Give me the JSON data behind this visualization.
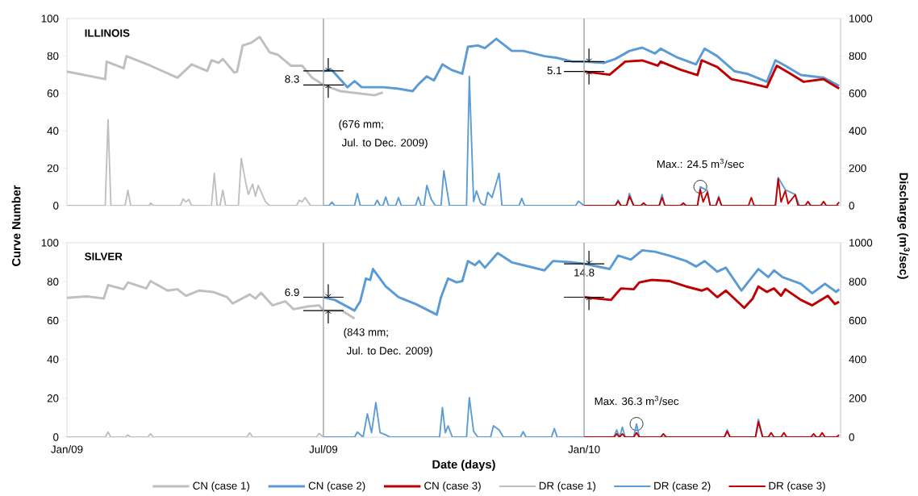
{
  "chart_data": [
    {
      "type": "line",
      "title": "ILLINOIS",
      "xlim": [
        "2009-01-01",
        "2010-07-01"
      ],
      "ylim": [
        0,
        100
      ],
      "yticks": [
        0,
        20,
        40,
        60,
        80,
        100
      ],
      "y2lim": [
        0,
        1000
      ],
      "y2ticks": [
        0,
        200,
        400,
        600,
        800,
        1000
      ],
      "tick_labels": "y",
      "ref_lines": [
        {
          "axis": "x",
          "value": "2009-07-01",
          "color": "#a6a6a6"
        },
        {
          "axis": "x",
          "value": "2010-01-01",
          "color": "#a6a6a6"
        }
      ],
      "annotations": [
        {
          "text": "8.3",
          "x": "2009-07-01",
          "y": 72
        },
        {
          "text": "5.1",
          "x": "2010-01-01",
          "y": 77
        },
        "(676 mm;",
        "Jul. to Dec. 2009)",
        {
          "text": "Max.: 24.5 m$^{3}$/sec",
          "x": "2010-03-24",
          "y": 10.1
        }
      ],
      "series": [
        {
          "color": "#bfbfbf",
          "x": [
            "2009-01-01",
            "2009-01-28",
            "2009-01-29",
            "2009-02-10",
            "2009-02-12",
            "2009-03-01",
            "2009-03-20",
            "2009-03-30",
            "2009-04-10",
            "2009-04-13",
            "2009-04-18",
            "2009-04-21",
            "2009-04-29",
            "2009-05-01",
            "2009-05-05",
            "2009-05-11",
            "2009-05-17",
            "2009-05-24",
            "2009-05-30",
            "2009-06-08",
            "2009-06-16",
            "2009-06-23",
            "2009-07-01",
            "2009-07-13",
            "2009-08-06",
            "2009-08-12"
          ],
          "values": [
            71.7,
            67.6,
            77,
            73.4,
            79.9,
            74.8,
            68.4,
            75.5,
            72,
            77.7,
            76.3,
            78.4,
            71.2,
            71.5,
            85.6,
            87,
            90.2,
            82,
            80.6,
            74.8,
            74.8,
            68.4,
            64.5,
            61.2,
            59,
            60.5
          ]
        },
        {
          "color": "#5b9bd5",
          "x": [
            "2009-07-01",
            "2009-07-07",
            "2009-07-18",
            "2009-07-23",
            "2009-07-28",
            "2009-08-12",
            "2009-08-22",
            "2009-09-02",
            "2009-09-06",
            "2009-09-12",
            "2009-09-17",
            "2009-09-23",
            "2009-09-29",
            "2009-10-07",
            "2009-10-11",
            "2009-10-18",
            "2009-10-23",
            "2009-10-31",
            "2009-11-11",
            "2009-11-19",
            "2009-12-04",
            "2009-12-12",
            "2009-12-24",
            "2010-01-01",
            "2010-01-15",
            "2010-01-23",
            "2010-02-02",
            "2010-02-11",
            "2010-02-20",
            "2010-02-24",
            "2010-03-08",
            "2010-03-21",
            "2010-03-27",
            "2010-04-05",
            "2010-04-17",
            "2010-04-26",
            "2010-05-10",
            "2010-05-16",
            "2010-05-23",
            "2010-06-03",
            "2010-06-19",
            "2010-06-30"
          ],
          "values": [
            72,
            72.4,
            63.3,
            66.6,
            63.3,
            63.3,
            62.6,
            61.2,
            64.8,
            69.1,
            66.9,
            75.5,
            72.7,
            70.5,
            84.9,
            85.6,
            84.2,
            89.2,
            82.7,
            82.7,
            79.9,
            79.1,
            77,
            77,
            76.3,
            78.4,
            82.7,
            84.5,
            81.3,
            83.9,
            79.1,
            75.5,
            83.9,
            79.9,
            71.9,
            70.5,
            66.2,
            77.7,
            74.8,
            69.8,
            68.4,
            64
          ]
        },
        {
          "color": "#c00000",
          "x": [
            "2010-01-01",
            "2010-01-19",
            "2010-01-30",
            "2010-02-11",
            "2010-02-22",
            "2010-02-24",
            "2010-03-10",
            "2010-03-22",
            "2010-03-25",
            "2010-04-05",
            "2010-04-15",
            "2010-04-24",
            "2010-05-10",
            "2010-05-17",
            "2010-05-25",
            "2010-06-05",
            "2010-06-19",
            "2010-06-30"
          ],
          "values": [
            71.7,
            70,
            77,
            77.6,
            74.8,
            77,
            72.7,
            69.8,
            77.7,
            74.1,
            67.6,
            66.2,
            63.3,
            74.8,
            71.2,
            66.2,
            67.6,
            62.6
          ]
        },
        {
          "color": "#bfbfbf",
          "axis": "y2",
          "x": [
            "2009-01-01",
            "2009-01-28",
            "2009-01-30",
            "2009-02-01",
            "2009-02-11",
            "2009-02-13",
            "2009-02-15",
            "2009-02-28",
            "2009-03-01",
            "2009-03-03",
            "2009-03-22",
            "2009-03-24",
            "2009-03-26",
            "2009-03-28",
            "2009-03-30",
            "2009-04-13",
            "2009-04-15",
            "2009-04-17",
            "2009-04-19",
            "2009-04-21",
            "2009-04-23",
            "2009-05-02",
            "2009-05-04",
            "2009-05-07",
            "2009-05-09",
            "2009-05-12",
            "2009-05-14",
            "2009-05-16",
            "2009-05-21",
            "2009-05-24",
            "2009-06-12",
            "2009-06-14",
            "2009-06-16",
            "2009-06-18",
            "2009-06-22",
            "2009-07-01"
          ],
          "values": [
            0,
            0,
            460,
            0,
            0,
            82,
            0,
            0,
            14,
            0,
            0,
            36,
            20,
            33,
            0,
            0,
            173,
            0,
            0,
            82,
            0,
            0,
            252,
            130,
            60,
            115,
            50,
            108,
            22,
            0,
            0,
            29,
            20,
            43,
            0,
            0
          ]
        },
        {
          "color": "#5b9bd5",
          "axis": "y2",
          "x": [
            "2009-07-01",
            "2009-07-05",
            "2009-07-07",
            "2009-07-09",
            "2009-07-23",
            "2009-07-25",
            "2009-07-27",
            "2009-08-06",
            "2009-08-08",
            "2009-08-10",
            "2009-08-12",
            "2009-08-14",
            "2009-08-16",
            "2009-08-21",
            "2009-08-23",
            "2009-08-25",
            "2009-09-04",
            "2009-09-06",
            "2009-09-08",
            "2009-09-10",
            "2009-09-12",
            "2009-09-15",
            "2009-09-18",
            "2009-09-22",
            "2009-09-24",
            "2009-09-28",
            "2009-10-10",
            "2009-10-12",
            "2009-10-15",
            "2009-10-17",
            "2009-10-20",
            "2009-10-23",
            "2009-10-25",
            "2009-10-28",
            "2009-11-02",
            "2009-11-04",
            "2009-11-16",
            "2009-11-18",
            "2009-11-20",
            "2009-12-26",
            "2009-12-28",
            "2010-01-01",
            "2010-01-23",
            "2010-01-25",
            "2010-01-27",
            "2010-01-31",
            "2010-02-02",
            "2010-02-05",
            "2010-02-23",
            "2010-02-25",
            "2010-02-27",
            "2010-03-22",
            "2010-03-24",
            "2010-03-29",
            "2010-03-31",
            "2010-04-04",
            "2010-04-06",
            "2010-04-08",
            "2010-05-16",
            "2010-05-18",
            "2010-05-23",
            "2010-05-30",
            "2010-06-02",
            "2010-06-30"
          ],
          "values": [
            0,
            0,
            19,
            0,
            0,
            65,
            0,
            0,
            29,
            0,
            0,
            46,
            0,
            0,
            43,
            0,
            0,
            46,
            0,
            0,
            108,
            36,
            0,
            0,
            187,
            0,
            0,
            691,
            22,
            79,
            14,
            0,
            72,
            43,
            173,
            0,
            0,
            39,
            0,
            0,
            24,
            0,
            0,
            30,
            0,
            0,
            65,
            0,
            0,
            60,
            0,
            0,
            101,
            80,
            0,
            0,
            50,
            0,
            0,
            150,
            85,
            60,
            0,
            0
          ]
        },
        {
          "color": "#c00000",
          "axis": "y2",
          "x": [
            "2010-01-01",
            "2010-01-23",
            "2010-01-25",
            "2010-01-27",
            "2010-01-31",
            "2010-02-02",
            "2010-02-05",
            "2010-02-10",
            "2010-02-12",
            "2010-02-14",
            "2010-02-23",
            "2010-02-25",
            "2010-02-27",
            "2010-03-10",
            "2010-03-12",
            "2010-03-14",
            "2010-03-22",
            "2010-03-24",
            "2010-03-26",
            "2010-03-29",
            "2010-03-31",
            "2010-04-04",
            "2010-04-06",
            "2010-04-08",
            "2010-04-27",
            "2010-04-29",
            "2010-05-01",
            "2010-05-16",
            "2010-05-18",
            "2010-05-20",
            "2010-05-23",
            "2010-05-25",
            "2010-05-30",
            "2010-06-01",
            "2010-06-06",
            "2010-06-08",
            "2010-06-10",
            "2010-06-17",
            "2010-06-19",
            "2010-06-21",
            "2010-06-28",
            "2010-06-30"
          ],
          "values": [
            0,
            0,
            24,
            0,
            0,
            50,
            0,
            0,
            14,
            0,
            0,
            43,
            0,
            0,
            14,
            0,
            0,
            86,
            20,
            72,
            0,
            0,
            43,
            0,
            0,
            43,
            0,
            0,
            144,
            20,
            79,
            10,
            58,
            0,
            0,
            22,
            0,
            0,
            22,
            0,
            0,
            19
          ]
        }
      ]
    },
    {
      "type": "line",
      "title": "SILVER",
      "xlabel": "Date (days)",
      "ylabel": "Curve Number",
      "y2label": "Discharge (m$^{3}$/sec)",
      "xlim": [
        "2009-01-01",
        "2010-07-01"
      ],
      "xticks": [
        {
          "value": "2009-01-01",
          "label": "Jan/09"
        },
        {
          "value": "2009-07-01",
          "label": "Jul/09"
        },
        {
          "value": "2010-01-01",
          "label": "Jan/10"
        }
      ],
      "ylim": [
        0,
        100
      ],
      "yticks": [
        0,
        20,
        40,
        60,
        80,
        100
      ],
      "y2lim": [
        0,
        1000
      ],
      "y2ticks": [
        0,
        200,
        400,
        600,
        800,
        1000
      ],
      "legend": "bottom",
      "ref_lines": [
        {
          "axis": "x",
          "value": "2009-07-01",
          "color": "#a6a6a6"
        },
        {
          "axis": "x",
          "value": "2010-01-01",
          "color": "#a6a6a6"
        }
      ],
      "annotations": [
        {
          "text": "6.9",
          "x": "2009-07-01",
          "y": 72
        },
        {
          "text": "14.8",
          "x": "2010-01-01",
          "y": 89.2
        },
        "(843 mm;",
        "Jul. to Dec. 2009)",
        {
          "text": "Max. 36.3 m$^{3}$/sec",
          "x": "2010-02-07",
          "y": 6.8
        }
      ],
      "series": [
        {
          "name": "CN (case 1)",
          "color": "#bfbfbf",
          "x": [
            "2009-01-01",
            "2009-01-15",
            "2009-01-27",
            "2009-01-30",
            "2009-02-10",
            "2009-02-13",
            "2009-02-26",
            "2009-03-01",
            "2009-03-13",
            "2009-03-20",
            "2009-03-26",
            "2009-04-04",
            "2009-04-14",
            "2009-04-24",
            "2009-04-28",
            "2009-05-10",
            "2009-05-14",
            "2009-05-18",
            "2009-05-26",
            "2009-06-04",
            "2009-06-10",
            "2009-06-20",
            "2009-06-28",
            "2009-07-01",
            "2009-07-14",
            "2009-07-23"
          ],
          "values": [
            71.7,
            72.4,
            71.3,
            78.2,
            76.1,
            79.6,
            76.5,
            80.3,
            75.4,
            76.1,
            72.7,
            75.4,
            74.7,
            72,
            68.8,
            73.4,
            71.3,
            74.3,
            67.8,
            69.9,
            65.8,
            67.2,
            67.8,
            65.1,
            65.1,
            61
          ]
        },
        {
          "name": "CN (case 2)",
          "color": "#5b9bd5",
          "x": [
            "2009-07-01",
            "2009-07-09",
            "2009-07-23",
            "2009-07-27",
            "2009-07-31",
            "2009-08-03",
            "2009-08-05",
            "2009-08-14",
            "2009-08-23",
            "2009-09-04",
            "2009-09-19",
            "2009-09-22",
            "2009-09-27",
            "2009-10-03",
            "2009-10-07",
            "2009-10-11",
            "2009-10-16",
            "2009-10-19",
            "2009-10-23",
            "2009-11-01",
            "2009-11-11",
            "2009-11-19",
            "2009-12-04",
            "2009-12-10",
            "2009-12-24",
            "2010-01-01",
            "2010-01-19",
            "2010-01-25",
            "2010-02-03",
            "2010-02-11",
            "2010-02-20",
            "2010-03-02",
            "2010-03-14",
            "2010-03-21",
            "2010-03-27",
            "2010-04-05",
            "2010-04-11",
            "2010-04-22",
            "2010-05-04",
            "2010-05-11",
            "2010-05-15",
            "2010-05-21",
            "2010-06-03",
            "2010-06-11",
            "2010-06-20",
            "2010-06-28",
            "2010-06-30"
          ],
          "values": [
            72,
            70.6,
            65.1,
            69.9,
            81.6,
            80.9,
            86.5,
            77.5,
            72,
            68.5,
            63,
            72,
            81.6,
            79.6,
            80.3,
            90.6,
            88.5,
            90.6,
            87.2,
            94.7,
            89.9,
            88.5,
            85.8,
            90.6,
            89.9,
            89.2,
            86.5,
            93.4,
            91.3,
            96.1,
            95.4,
            93.4,
            90.6,
            87.8,
            90.6,
            85.1,
            87.2,
            75.4,
            86.5,
            82.3,
            85.8,
            82.3,
            78.9,
            74,
            78.9,
            74.7,
            76.1
          ]
        },
        {
          "name": "CN (case 3)",
          "color": "#c00000",
          "x": [
            "2010-01-01",
            "2010-01-20",
            "2010-01-27",
            "2010-02-05",
            "2010-02-09",
            "2010-02-18",
            "2010-03-02",
            "2010-03-14",
            "2010-03-25",
            "2010-03-29",
            "2010-04-05",
            "2010-04-11",
            "2010-04-24",
            "2010-04-30",
            "2010-05-04",
            "2010-05-10",
            "2010-05-15",
            "2010-05-20",
            "2010-05-23",
            "2010-06-03",
            "2010-06-11",
            "2010-06-22",
            "2010-06-27",
            "2010-06-30"
          ],
          "values": [
            72,
            70.6,
            76.5,
            76.1,
            79.6,
            80.9,
            80.3,
            77.5,
            75.4,
            76.5,
            72,
            75.4,
            66.5,
            71.3,
            77.5,
            74.7,
            76.5,
            72.7,
            76.1,
            70.6,
            67.8,
            72.7,
            68.5,
            69.6
          ]
        },
        {
          "name": "DR (case 1)",
          "color": "#bfbfbf",
          "axis": "y2",
          "x": [
            "2009-01-01",
            "2009-01-28",
            "2009-01-30",
            "2009-02-01",
            "2009-02-11",
            "2009-02-13",
            "2009-02-15",
            "2009-02-27",
            "2009-03-01",
            "2009-03-03",
            "2009-05-08",
            "2009-05-10",
            "2009-05-12",
            "2009-06-26",
            "2009-06-28",
            "2009-07-01"
          ],
          "values": [
            0,
            0,
            26,
            0,
            0,
            12,
            0,
            0,
            17,
            0,
            0,
            23,
            0,
            0,
            19,
            0
          ]
        },
        {
          "name": "DR (case 2)",
          "color": "#5b9bd5",
          "axis": "y2",
          "x": [
            "2009-07-01",
            "2009-07-23",
            "2009-07-25",
            "2009-07-29",
            "2009-08-01",
            "2009-08-04",
            "2009-08-07",
            "2009-08-10",
            "2009-08-14",
            "2009-08-17",
            "2009-09-21",
            "2009-09-23",
            "2009-09-25",
            "2009-09-27",
            "2009-09-30",
            "2009-10-10",
            "2009-10-12",
            "2009-10-15",
            "2009-10-18",
            "2009-10-27",
            "2009-10-29",
            "2009-11-02",
            "2009-11-05",
            "2009-11-17",
            "2009-11-19",
            "2009-11-21",
            "2009-12-09",
            "2009-12-11",
            "2009-12-13",
            "2010-01-01",
            "2010-01-22",
            "2010-01-24",
            "2010-01-26",
            "2010-01-28",
            "2010-01-30",
            "2010-02-05",
            "2010-02-07",
            "2010-02-09",
            "2010-04-10",
            "2010-04-12",
            "2010-04-14",
            "2010-05-02",
            "2010-05-04",
            "2010-05-07",
            "2010-06-30"
          ],
          "values": [
            0,
            0,
            26,
            0,
            120,
            23,
            178,
            23,
            12,
            0,
            0,
            152,
            23,
            58,
            0,
            0,
            203,
            30,
            0,
            0,
            58,
            37,
            0,
            0,
            28,
            0,
            0,
            44,
            0,
            0,
            0,
            37,
            0,
            51,
            0,
            0,
            68,
            0,
            0,
            37,
            0,
            0,
            92,
            0,
            0
          ]
        },
        {
          "name": "DR (case 3)",
          "color": "#c00000",
          "axis": "y2",
          "x": [
            "2010-01-01",
            "2010-01-22",
            "2010-01-24",
            "2010-01-26",
            "2010-01-28",
            "2010-01-30",
            "2010-02-05",
            "2010-02-07",
            "2010-02-09",
            "2010-02-24",
            "2010-02-26",
            "2010-02-28",
            "2010-04-10",
            "2010-04-12",
            "2010-04-14",
            "2010-05-02",
            "2010-05-04",
            "2010-05-07",
            "2010-05-11",
            "2010-05-13",
            "2010-05-15",
            "2010-05-20",
            "2010-05-22",
            "2010-05-24",
            "2010-06-10",
            "2010-06-12",
            "2010-06-14",
            "2010-06-16",
            "2010-06-18",
            "2010-06-20",
            "2010-06-28",
            "2010-06-30"
          ],
          "values": [
            0,
            0,
            17,
            0,
            17,
            0,
            0,
            23,
            0,
            0,
            17,
            0,
            0,
            30,
            0,
            0,
            79,
            0,
            0,
            23,
            0,
            0,
            23,
            0,
            0,
            17,
            0,
            0,
            23,
            0,
            0,
            12
          ]
        }
      ]
    }
  ]
}
